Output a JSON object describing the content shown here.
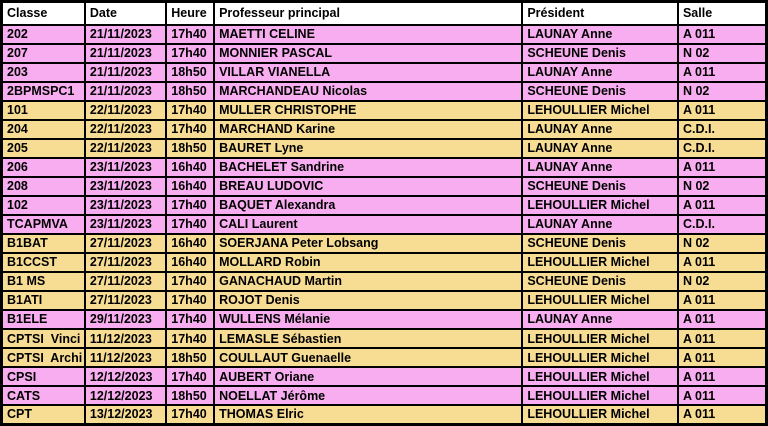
{
  "table": {
    "columns": [
      {
        "key": "classe",
        "label": "Classe"
      },
      {
        "key": "date",
        "label": "Date"
      },
      {
        "key": "heure",
        "label": "Heure"
      },
      {
        "key": "professeur",
        "label": "Professeur principal"
      },
      {
        "key": "president",
        "label": "Président"
      },
      {
        "key": "salle",
        "label": "Salle"
      }
    ],
    "rows": [
      {
        "classe": "202",
        "date": "21/11/2023",
        "heure": "17h40",
        "professeur": "MAETTI CELINE",
        "president": "LAUNAY Anne",
        "salle": "A 011",
        "band": "pink"
      },
      {
        "classe": "207",
        "date": "21/11/2023",
        "heure": "17h40",
        "professeur": "MONNIER PASCAL",
        "president": "SCHEUNE Denis",
        "salle": "N 02",
        "band": "pink"
      },
      {
        "classe": "203",
        "date": "21/11/2023",
        "heure": "18h50",
        "professeur": "VILLAR VIANELLA",
        "president": "LAUNAY Anne",
        "salle": "A 011",
        "band": "pink"
      },
      {
        "classe": "2BPMSPC1",
        "date": "21/11/2023",
        "heure": "18h50",
        "professeur": "MARCHANDEAU Nicolas",
        "president": "SCHEUNE Denis",
        "salle": "N 02",
        "band": "pink"
      },
      {
        "classe": "101",
        "date": "22/11/2023",
        "heure": "17h40",
        "professeur": "MULLER CHRISTOPHE",
        "president": "LEHOULLIER Michel",
        "salle": "A 011",
        "band": "tan"
      },
      {
        "classe": "204",
        "date": "22/11/2023",
        "heure": "17h40",
        "professeur": "MARCHAND Karine",
        "president": "LAUNAY Anne",
        "salle": "C.D.I.",
        "band": "tan"
      },
      {
        "classe": "205",
        "date": "22/11/2023",
        "heure": "18h50",
        "professeur": "BAURET Lyne",
        "president": "LAUNAY Anne",
        "salle": "C.D.I.",
        "band": "tan"
      },
      {
        "classe": "206",
        "date": "23/11/2023",
        "heure": "16h40",
        "professeur": "BACHELET Sandrine",
        "president": "LAUNAY Anne",
        "salle": "A 011",
        "band": "pink"
      },
      {
        "classe": "208",
        "date": "23/11/2023",
        "heure": "16h40",
        "professeur": "BREAU LUDOVIC",
        "president": "SCHEUNE Denis",
        "salle": "N 02",
        "band": "pink"
      },
      {
        "classe": "102",
        "date": "23/11/2023",
        "heure": "17h40",
        "professeur": "BAQUET Alexandra",
        "president": "LEHOULLIER Michel",
        "salle": "A 011",
        "band": "pink"
      },
      {
        "classe": "TCAPMVA",
        "date": "23/11/2023",
        "heure": "17h40",
        "professeur": "CALI Laurent",
        "president": "LAUNAY Anne",
        "salle": "C.D.I.",
        "band": "pink"
      },
      {
        "classe": "B1BAT",
        "date": "27/11/2023",
        "heure": "16h40",
        "professeur": "SOERJANA Peter Lobsang",
        "president": "SCHEUNE Denis",
        "salle": "N 02",
        "band": "tan"
      },
      {
        "classe": "B1CCST",
        "date": "27/11/2023",
        "heure": "16h40",
        "professeur": "MOLLARD Robin",
        "president": "LEHOULLIER Michel",
        "salle": "A 011",
        "band": "tan"
      },
      {
        "classe": "B1 MS",
        "date": "27/11/2023",
        "heure": "17h40",
        "professeur": "GANACHAUD Martin",
        "president": "SCHEUNE Denis",
        "salle": "N 02",
        "band": "tan"
      },
      {
        "classe": "B1ATI",
        "date": "27/11/2023",
        "heure": "17h40",
        "professeur": "ROJOT Denis",
        "president": "LEHOULLIER Michel",
        "salle": "A 011",
        "band": "tan"
      },
      {
        "classe": "B1ELE",
        "date": "29/11/2023",
        "heure": "17h40",
        "professeur": "WULLENS Mélanie",
        "president": "LAUNAY Anne",
        "salle": "A 011",
        "band": "pink"
      },
      {
        "classe": "CPTSI  Vinci",
        "date": "11/12/2023",
        "heure": "17h40",
        "professeur": "LEMASLE Sébastien",
        "president": "LEHOULLIER Michel",
        "salle": "A 011",
        "band": "tan"
      },
      {
        "classe": "CPTSI  Archi",
        "date": "11/12/2023",
        "heure": "18h50",
        "professeur": "COULLAUT Guenaelle",
        "president": "LEHOULLIER Michel",
        "salle": "A 011",
        "band": "tan"
      },
      {
        "classe": "CPSI",
        "date": "12/12/2023",
        "heure": "17h40",
        "professeur": "AUBERT Oriane",
        "president": "LEHOULLIER Michel",
        "salle": "A 011",
        "band": "pink"
      },
      {
        "classe": "CATS",
        "date": "12/12/2023",
        "heure": "18h50",
        "professeur": "NOELLAT Jérôme",
        "president": "LEHOULLIER Michel",
        "salle": "A 011",
        "band": "pink"
      },
      {
        "classe": "CPT",
        "date": "13/12/2023",
        "heure": "17h40",
        "professeur": "THOMAS Elric",
        "president": "LEHOULLIER Michel",
        "salle": "A 011",
        "band": "tan"
      }
    ],
    "colors": {
      "pink": "#f7adef",
      "tan": "#f7dd94",
      "header_bg": "#ffffff",
      "border": "#000000",
      "text": "#000000"
    }
  }
}
